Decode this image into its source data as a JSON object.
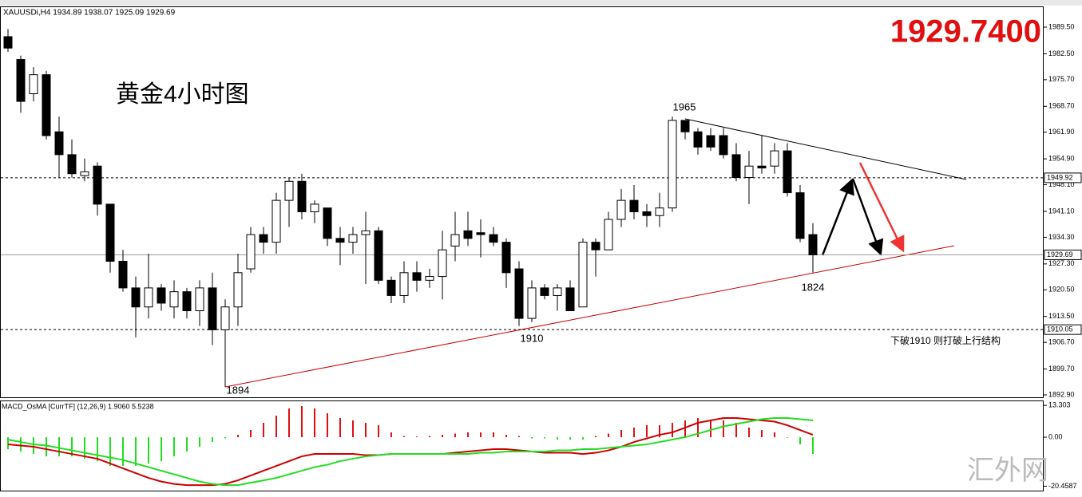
{
  "chart_data": [
    {
      "type": "candlestick",
      "title": "XAUUSDi,H4  1934.89 1938.07 1925.09 1929.69",
      "open": [
        1987,
        1981,
        1972,
        1977,
        1962,
        1956,
        1950.5,
        1953,
        1943,
        1928,
        1921,
        1916,
        1921,
        1916,
        1920,
        1915,
        1921,
        1910,
        1916,
        1926,
        1935,
        1933,
        1944,
        1949,
        1941,
        1942,
        1934,
        1933,
        1935,
        1936,
        1923,
        1919,
        1925,
        1923,
        1924,
        1932,
        1936,
        1935.5,
        1935,
        1933,
        1926,
        1913,
        1921,
        1919,
        1921,
        1916,
        1933,
        1931,
        1939,
        1944,
        1941,
        1940,
        1942,
        1965,
        1962,
        1961,
        1961,
        1956,
        1950,
        1953,
        1953,
        1957,
        1946,
        1935
      ],
      "high": [
        1989,
        1982,
        1979,
        1978,
        1966,
        1960,
        1955,
        1954,
        1943,
        1931,
        1924,
        1930,
        1922,
        1923,
        1921,
        1923,
        1925,
        1918,
        1930,
        1937,
        1937,
        1946,
        1950,
        1951,
        1944,
        1942,
        1937,
        1937,
        1941,
        1937,
        1924,
        1928,
        1928,
        1926,
        1936,
        1941,
        1941,
        1939,
        1937,
        1934,
        1928,
        1923,
        1922,
        1922,
        1923,
        1934,
        1934,
        1941,
        1947,
        1948,
        1943,
        1946,
        1966,
        1965,
        1963,
        1963,
        1963,
        1959,
        1957,
        1961,
        1959,
        1959,
        1948,
        1938
      ],
      "low": [
        1983,
        1967,
        1970,
        1960,
        1950,
        1950,
        1949,
        1940,
        1925,
        1920,
        1908,
        1913,
        1915,
        1913,
        1913,
        1911,
        1906,
        1895,
        1911,
        1925,
        1930,
        1930,
        1937,
        1939,
        1938,
        1932,
        1927,
        1930,
        1922,
        1922,
        1917,
        1917,
        1920,
        1921,
        1918,
        1928,
        1932,
        1929,
        1932,
        1921,
        1911,
        1912,
        1918,
        1915,
        1915,
        1916,
        1924,
        1931,
        1937,
        1939,
        1937,
        1937,
        1941,
        1960,
        1956,
        1957,
        1955,
        1949,
        1943,
        1951,
        1951,
        1945,
        1933,
        1925
      ],
      "close": [
        1984,
        1970,
        1977,
        1961,
        1956,
        1951,
        1951.5,
        1943,
        1928,
        1921,
        1916,
        1921,
        1917,
        1920,
        1915,
        1921,
        1910,
        1916,
        1925,
        1935,
        1933,
        1944,
        1949,
        1941,
        1943,
        1934,
        1933,
        1935,
        1936,
        1923,
        1919,
        1925,
        1923,
        1924,
        1931,
        1935,
        1934,
        1935,
        1933,
        1925,
        1913,
        1921,
        1919,
        1921,
        1915,
        1933,
        1931,
        1939,
        1944,
        1941,
        1940,
        1942,
        1965,
        1962,
        1958,
        1958,
        1956,
        1950,
        1953,
        1952.5,
        1957,
        1946,
        1934,
        1929.69
      ],
      "ylim": [
        1892.27,
        1994.95
      ],
      "yticks": [
        {
          "value": 1989.5,
          "label": "1989.50"
        },
        {
          "value": 1982.5,
          "label": "1982.50"
        },
        {
          "value": 1975.7,
          "label": "1975.70"
        },
        {
          "value": 1968.7,
          "label": "1968.70"
        },
        {
          "value": 1961.9,
          "label": "1961.90"
        },
        {
          "value": 1954.9,
          "label": "1954.90"
        },
        {
          "value": 1948.1,
          "label": "1948.10"
        },
        {
          "value": 1941.1,
          "label": "1941.10"
        },
        {
          "value": 1934.3,
          "label": "1934.30"
        },
        {
          "value": 1927.3,
          "label": "1927.30"
        },
        {
          "value": 1920.5,
          "label": "1920.50"
        },
        {
          "value": 1913.5,
          "label": "1913.50"
        },
        {
          "value": 1906.7,
          "label": "1906.70"
        },
        {
          "value": 1899.7,
          "label": "1899.70"
        },
        {
          "value": 1892.9,
          "label": "1892.90"
        }
      ],
      "levels": [
        {
          "value": 1949.92,
          "label": "1949.92"
        },
        {
          "value": 1929.69,
          "label": "1929.69"
        },
        {
          "value": 1910.05,
          "label": "1910.05"
        }
      ],
      "annotations": [
        "1965",
        "1910",
        "1894",
        "1824"
      ],
      "price": "1929.7400",
      "heading": "黄金4小时图",
      "note": "下破1910  则打破上行结构"
    },
    {
      "type": "macd",
      "title": "MACD_OsMA [CurrTF] (12,26,9) 1.9060 5.5238",
      "histogram": [
        -5,
        -6,
        -7,
        -8,
        -8,
        -8,
        -9,
        -10,
        -12,
        -12,
        -12,
        -11,
        -10,
        -8,
        -6,
        -4,
        -2,
        -0.5,
        1,
        3,
        6,
        9,
        12,
        13,
        12,
        10,
        8,
        7,
        6,
        5,
        2,
        0.5,
        0.3,
        0.5,
        1,
        1.5,
        2,
        2,
        2,
        1,
        0.5,
        -0.5,
        -0.5,
        -1,
        -1,
        -1,
        0.5,
        1.5,
        3,
        4,
        5,
        5,
        6,
        7,
        8,
        7,
        7,
        6,
        4,
        3,
        2,
        0,
        -3,
        -7
      ],
      "lines": [
        {
          "color": "#cc0000",
          "values": [
            -3,
            -3.5,
            -4,
            -5,
            -6,
            -7,
            -8,
            -9,
            -11,
            -13,
            -15,
            -17,
            -18.5,
            -19.5,
            -20,
            -20,
            -20,
            -19.5,
            -18,
            -16,
            -14,
            -12,
            -10,
            -8,
            -7,
            -7,
            -7,
            -7,
            -7.5,
            -7.5,
            -7,
            -7,
            -7,
            -7,
            -7,
            -6.5,
            -6,
            -5.5,
            -5,
            -5,
            -5.5,
            -6,
            -6.5,
            -6.5,
            -6.5,
            -7,
            -6.5,
            -5.5,
            -4,
            -2,
            -0.5,
            1,
            2,
            4,
            6,
            7,
            8,
            8,
            7.5,
            7,
            6.5,
            5,
            3,
            1
          ]
        },
        {
          "color": "#22dd22",
          "values": [
            -1,
            -2,
            -3,
            -3.5,
            -4.5,
            -5.5,
            -6.5,
            -7.5,
            -8.5,
            -9.5,
            -11,
            -12.5,
            -14,
            -15.5,
            -17,
            -18.5,
            -19.5,
            -20,
            -20,
            -19,
            -18,
            -17,
            -15.5,
            -14,
            -12.5,
            -11.5,
            -10,
            -9,
            -8,
            -7.5,
            -7,
            -7,
            -7,
            -7,
            -7,
            -7,
            -7,
            -6.5,
            -6.5,
            -6,
            -6,
            -6,
            -6,
            -5.5,
            -5.5,
            -5,
            -5,
            -4.5,
            -4,
            -3.5,
            -3,
            -2,
            -1,
            0,
            1.5,
            3,
            4.5,
            5.5,
            6.5,
            7.5,
            8,
            8,
            7.5,
            7
          ]
        }
      ],
      "ylim": [
        -22.3,
        15
      ],
      "yticks": [
        13.303,
        {
          "value": 0,
          "label": "0.00"
        },
        -20.4587
      ]
    }
  ],
  "watermark": "汇外网"
}
